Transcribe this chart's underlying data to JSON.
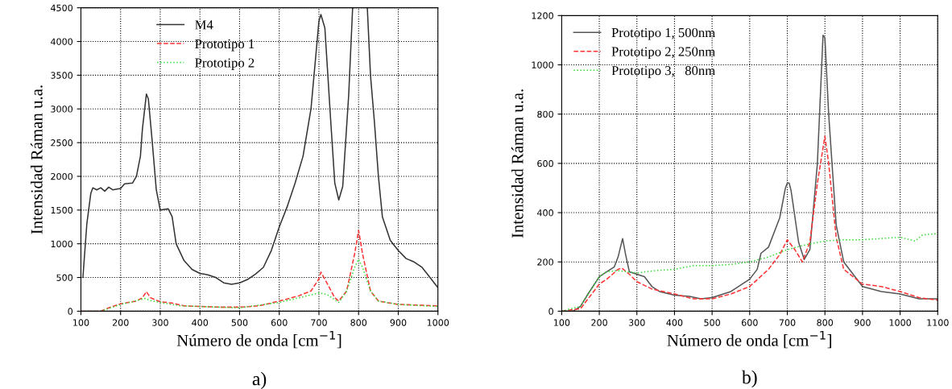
{
  "chart_data": [
    {
      "type": "line",
      "xlabel": "Número de onda [cm$^{−1}$]",
      "ylabel": "Intensidad Ráman u.a.",
      "annotations": [
        "a)"
      ],
      "xlim": [
        100,
        1000
      ],
      "ylim": [
        0,
        4500
      ],
      "xticks": [
        100,
        200,
        300,
        400,
        500,
        600,
        700,
        800,
        900,
        1000
      ],
      "yticks": [
        0,
        500,
        1000,
        1500,
        2000,
        2500,
        3000,
        3500,
        4000,
        4500
      ],
      "grid": true,
      "legend": "top",
      "series": [
        {
          "name": "M4",
          "color": "#333333",
          "line_style": "solid",
          "x": [
            105,
            115,
            125,
            130,
            140,
            150,
            160,
            170,
            180,
            200,
            210,
            230,
            240,
            250,
            255,
            265,
            270,
            280,
            290,
            300,
            310,
            320,
            330,
            340,
            360,
            380,
            400,
            420,
            440,
            460,
            480,
            500,
            520,
            540,
            560,
            580,
            600,
            620,
            640,
            660,
            680,
            700,
            705,
            715,
            730,
            740,
            750,
            760,
            775,
            785,
            800,
            822,
            830,
            840,
            850,
            860,
            880,
            900,
            920,
            940,
            960,
            980,
            1000
          ],
          "values": [
            500,
            1300,
            1750,
            1830,
            1800,
            1830,
            1780,
            1840,
            1800,
            1820,
            1890,
            1900,
            2000,
            2300,
            2700,
            3220,
            3150,
            2500,
            1800,
            1500,
            1510,
            1520,
            1400,
            1000,
            750,
            620,
            560,
            540,
            500,
            420,
            400,
            420,
            470,
            550,
            650,
            900,
            1250,
            1550,
            1900,
            2300,
            3000,
            4300,
            4400,
            4200,
            2800,
            1900,
            1650,
            1850,
            3200,
            4500,
            null,
            4500,
            3500,
            2800,
            2000,
            1400,
            1050,
            900,
            780,
            730,
            650,
            500,
            350
          ]
        },
        {
          "name": "Prototipo 1",
          "color": "#ff3333",
          "line_style": "dashed",
          "x": [
            100,
            150,
            170,
            200,
            220,
            240,
            255,
            265,
            275,
            300,
            330,
            360,
            400,
            450,
            500,
            550,
            600,
            650,
            680,
            700,
            705,
            720,
            740,
            750,
            770,
            790,
            800,
            810,
            830,
            850,
            900,
            950,
            1000
          ],
          "values": [
            0,
            0,
            50,
            110,
            130,
            150,
            200,
            290,
            200,
            140,
            120,
            80,
            70,
            60,
            60,
            80,
            150,
            230,
            300,
            480,
            580,
            420,
            200,
            150,
            300,
            850,
            1200,
            850,
            300,
            150,
            100,
            90,
            80
          ]
        },
        {
          "name": "Prototipo 2",
          "color": "#33dd33",
          "line_style": "dotted",
          "x": [
            100,
            150,
            200,
            230,
            260,
            280,
            300,
            350,
            400,
            500,
            600,
            650,
            700,
            720,
            750,
            770,
            790,
            800,
            810,
            830,
            850,
            900,
            1000
          ],
          "values": [
            0,
            0,
            100,
            140,
            190,
            150,
            130,
            80,
            70,
            50,
            130,
            200,
            270,
            250,
            130,
            300,
            650,
            770,
            650,
            300,
            150,
            100,
            70
          ]
        }
      ]
    },
    {
      "type": "line",
      "xlabel": "Número de onda [cm$^{−1}$]",
      "ylabel": "Intensidad Ráman u.a.",
      "annotations": [
        "b)"
      ],
      "xlim": [
        100,
        1100
      ],
      "ylim": [
        0,
        1200
      ],
      "xticks": [
        100,
        200,
        300,
        400,
        500,
        600,
        700,
        800,
        900,
        1000,
        1100
      ],
      "yticks": [
        0,
        200,
        400,
        600,
        800,
        1000,
        1200
      ],
      "grid": true,
      "legend": "top left",
      "series": [
        {
          "name": "Prototipo 1, 500nm",
          "color": "#555555",
          "line_style": "solid",
          "x": [
            100,
            130,
            150,
            170,
            200,
            220,
            240,
            250,
            262,
            270,
            280,
            300,
            320,
            340,
            360,
            400,
            440,
            470,
            500,
            550,
            600,
            620,
            630,
            650,
            680,
            695,
            700,
            705,
            710,
            730,
            745,
            760,
            780,
            795,
            800,
            810,
            830,
            850,
            880,
            900,
            950,
            1000,
            1050,
            1100
          ],
          "values": [
            0,
            0,
            20,
            70,
            140,
            160,
            180,
            220,
            295,
            230,
            160,
            150,
            140,
            100,
            80,
            65,
            60,
            50,
            55,
            80,
            130,
            170,
            235,
            260,
            380,
            500,
            520,
            520,
            490,
            280,
            210,
            250,
            600,
            1120,
            1110,
            800,
            350,
            200,
            140,
            100,
            80,
            70,
            50,
            50
          ]
        },
        {
          "name": "Prototipo 2, 250nm",
          "color": "#ff3333",
          "line_style": "dashed",
          "x": [
            100,
            150,
            200,
            220,
            250,
            260,
            280,
            300,
            340,
            400,
            450,
            500,
            550,
            600,
            650,
            680,
            700,
            720,
            740,
            760,
            780,
            800,
            810,
            830,
            850,
            900,
            950,
            1000,
            1050,
            1100
          ],
          "values": [
            0,
            10,
            110,
            130,
            170,
            175,
            150,
            120,
            90,
            70,
            50,
            50,
            70,
            100,
            170,
            230,
            290,
            250,
            200,
            280,
            520,
            710,
            600,
            300,
            170,
            110,
            100,
            80,
            55,
            45
          ]
        },
        {
          "name": "Prototipo 3,   80nm",
          "color": "#33dd33",
          "line_style": "dotted",
          "x": [
            100,
            150,
            200,
            220,
            250,
            300,
            350,
            400,
            450,
            500,
            550,
            600,
            650,
            700,
            750,
            800,
            850,
            900,
            950,
            1000,
            1040,
            1060,
            1100
          ],
          "values": [
            0,
            20,
            140,
            160,
            165,
            155,
            165,
            170,
            185,
            185,
            190,
            200,
            220,
            250,
            270,
            285,
            290,
            290,
            295,
            300,
            285,
            310,
            315
          ]
        }
      ]
    }
  ]
}
